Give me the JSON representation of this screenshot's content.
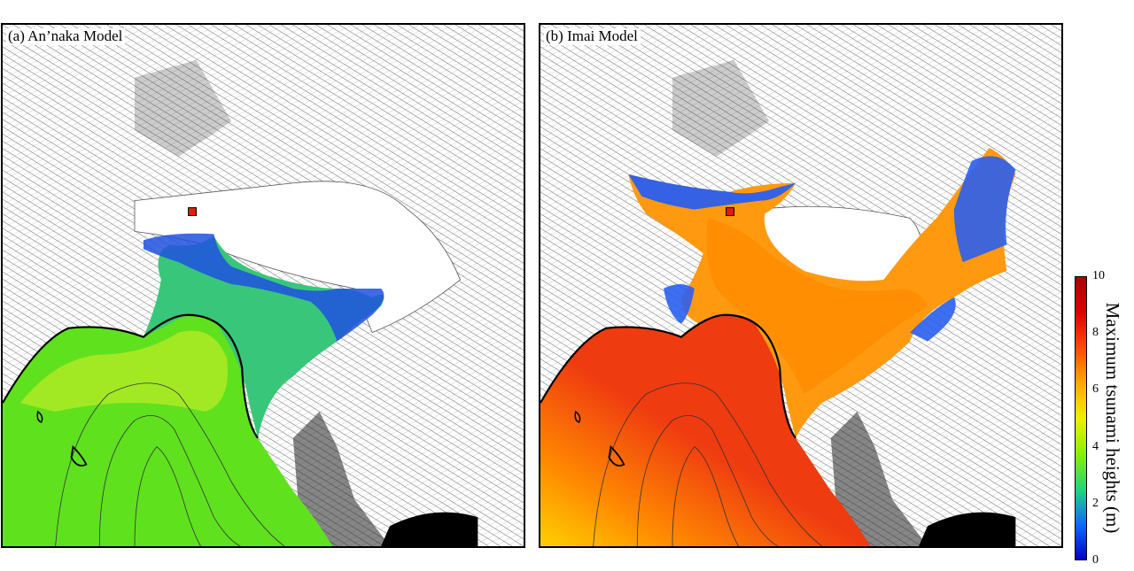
{
  "panels": [
    {
      "label": "(a) An’naka Model",
      "sea_color": "#5fe11e",
      "coast_color": "#d8f02a",
      "far_color": "#4fd40c",
      "bay_color": "#38c77a",
      "inner_color": "#2050e0"
    },
    {
      "label": "(b) Imai Model",
      "sea_color": "#ef3b10",
      "coast_color": "#ffe000",
      "far_color": "#ff8c00",
      "bay_color": "#ff9a10",
      "inner_color": "#2a5ff0"
    }
  ],
  "colorbar": {
    "label": "Maximum tsunami heights (m)",
    "min": 0,
    "max": 10,
    "ticks": [
      "0",
      "2",
      "4",
      "6",
      "8",
      "10"
    ],
    "colormap": [
      "#0000c8",
      "#0a6cff",
      "#1ed87a",
      "#8cf000",
      "#f0f000",
      "#ffa800",
      "#ff4a00",
      "#dd0000",
      "#aa0000"
    ]
  },
  "marker_color": "#e8190c"
}
